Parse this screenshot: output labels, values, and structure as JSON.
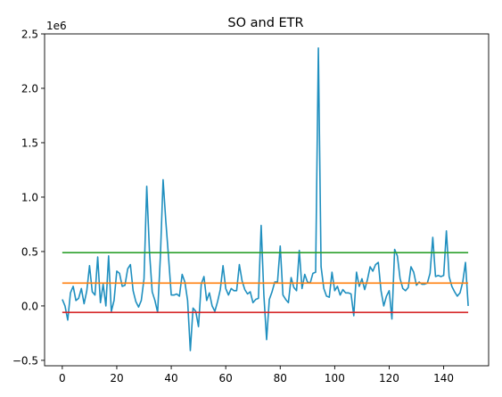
{
  "chart_data": {
    "type": "line",
    "title": "SO and ETR",
    "offset_label": "1e6",
    "xlabel": "",
    "ylabel": "",
    "xlim": [
      -6.5,
      156.5
    ],
    "ylim": [
      -0.55,
      2.5
    ],
    "x_ticks": [
      0,
      20,
      40,
      60,
      80,
      100,
      120,
      140
    ],
    "y_ticks": [
      -0.5,
      0.0,
      0.5,
      1.0,
      1.5,
      2.0,
      2.5
    ],
    "y_tick_labels": [
      "−0.5",
      "0.0",
      "0.5",
      "1.0",
      "1.5",
      "2.0",
      "2.5"
    ],
    "grid": false,
    "series": [
      {
        "color": "#1f8fbf",
        "values": [
          0.06,
          0.0,
          -0.13,
          0.12,
          0.18,
          0.05,
          0.07,
          0.16,
          0.02,
          0.14,
          0.37,
          0.13,
          0.1,
          0.45,
          0.03,
          0.2,
          0.0,
          0.46,
          -0.05,
          0.05,
          0.32,
          0.3,
          0.18,
          0.19,
          0.34,
          0.38,
          0.14,
          0.04,
          -0.01,
          0.05,
          0.25,
          1.1,
          0.5,
          0.13,
          0.05,
          -0.06,
          0.45,
          1.16,
          0.78,
          0.45,
          0.1,
          0.1,
          0.11,
          0.09,
          0.29,
          0.22,
          0.05,
          -0.41,
          -0.02,
          -0.05,
          -0.19,
          0.2,
          0.27,
          0.05,
          0.12,
          0.0,
          -0.05,
          0.04,
          0.15,
          0.37,
          0.16,
          0.1,
          0.16,
          0.14,
          0.14,
          0.38,
          0.23,
          0.15,
          0.11,
          0.13,
          0.03,
          0.06,
          0.07,
          0.74,
          0.1,
          -0.31,
          0.06,
          0.13,
          0.22,
          0.22,
          0.55,
          0.1,
          0.06,
          0.03,
          0.26,
          0.17,
          0.14,
          0.51,
          0.16,
          0.29,
          0.22,
          0.21,
          0.3,
          0.31,
          2.37,
          0.36,
          0.16,
          0.09,
          0.08,
          0.31,
          0.14,
          0.18,
          0.1,
          0.15,
          0.12,
          0.12,
          0.11,
          -0.09,
          0.31,
          0.18,
          0.25,
          0.15,
          0.24,
          0.36,
          0.32,
          0.38,
          0.4,
          0.14,
          0.0,
          0.09,
          0.14,
          -0.12,
          0.52,
          0.46,
          0.25,
          0.16,
          0.14,
          0.17,
          0.36,
          0.31,
          0.19,
          0.22,
          0.2,
          0.2,
          0.21,
          0.3,
          0.63,
          0.27,
          0.28,
          0.27,
          0.28,
          0.69,
          0.27,
          0.18,
          0.13,
          0.09,
          0.12,
          0.22,
          0.4,
          0.0
        ],
        "x_start": 0
      },
      {
        "color": "#2ca02c",
        "kind": "hline",
        "value": 0.49,
        "x_range": [
          0,
          149
        ]
      },
      {
        "color": "#ff7f0e",
        "kind": "hline",
        "value": 0.21,
        "x_range": [
          0,
          149
        ]
      },
      {
        "color": "#d62728",
        "kind": "hline",
        "value": -0.06,
        "x_range": [
          0,
          149
        ]
      }
    ]
  }
}
